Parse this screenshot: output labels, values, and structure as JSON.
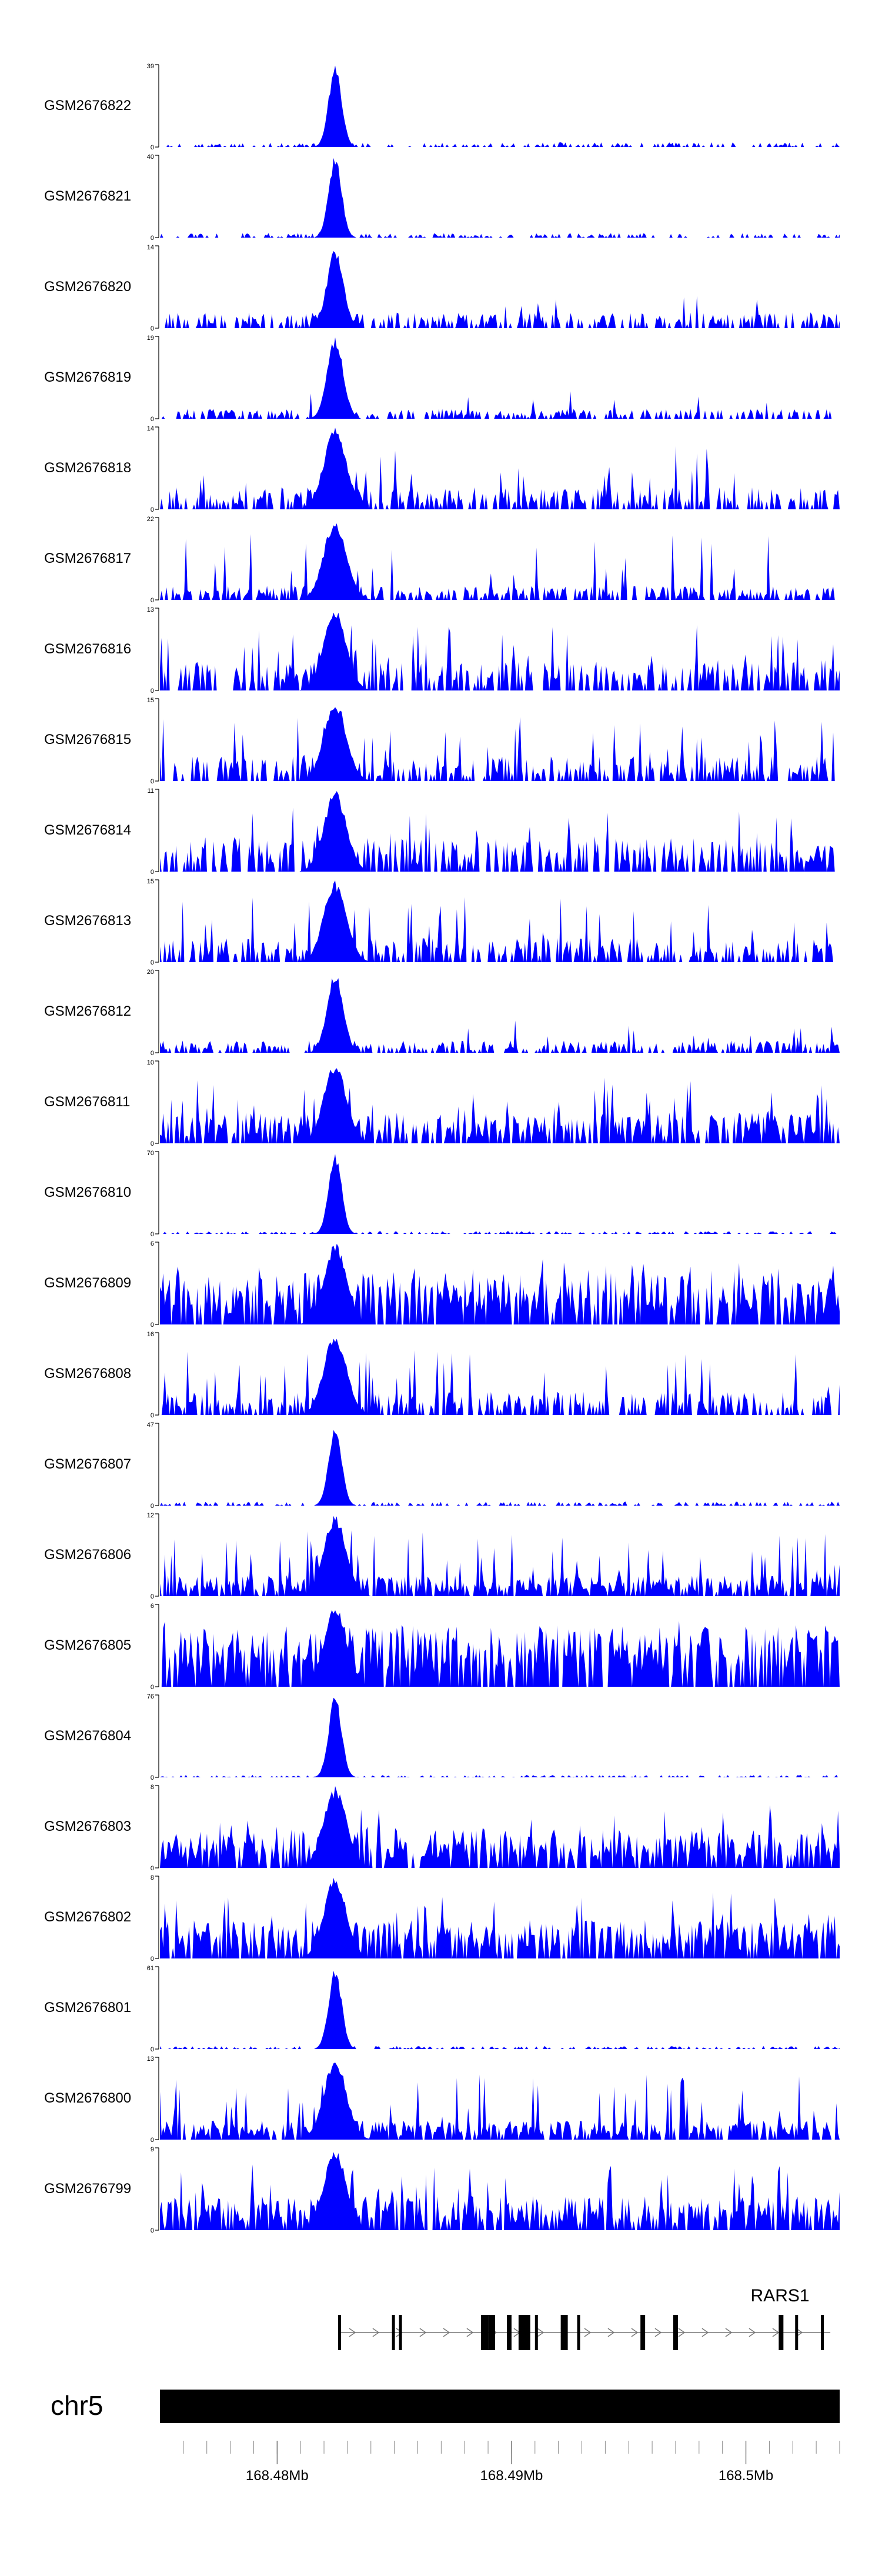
{
  "chart_data": {
    "type": "area",
    "title": "",
    "color": "#0000ff",
    "tracks": [
      {
        "name": "GSM2676822",
        "max": "39",
        "zero": "0",
        "peak": 39,
        "baseline": 1.5,
        "bg_density": "sparse"
      },
      {
        "name": "GSM2676821",
        "max": "40",
        "zero": "0",
        "peak": 40,
        "baseline": 1.5,
        "bg_density": "sparse"
      },
      {
        "name": "GSM2676820",
        "max": "14",
        "zero": "0",
        "peak": 14,
        "baseline": 1.8,
        "bg_density": "medium"
      },
      {
        "name": "GSM2676819",
        "max": "19",
        "zero": "0",
        "peak": 19,
        "baseline": 1.5,
        "bg_density": "medium"
      },
      {
        "name": "GSM2676818",
        "max": "14",
        "zero": "0",
        "peak": 14,
        "baseline": 2.5,
        "bg_density": "spiky"
      },
      {
        "name": "GSM2676817",
        "max": "22",
        "zero": "0",
        "peak": 22,
        "baseline": 2.5,
        "bg_density": "spiky"
      },
      {
        "name": "GSM2676816",
        "max": "13",
        "zero": "0",
        "peak": 13,
        "baseline": 3,
        "bg_density": "spiky"
      },
      {
        "name": "GSM2676815",
        "max": "15",
        "zero": "0",
        "peak": 15,
        "baseline": 3,
        "bg_density": "spiky"
      },
      {
        "name": "GSM2676814",
        "max": "11",
        "zero": "0",
        "peak": 11,
        "baseline": 3,
        "bg_density": "spiky"
      },
      {
        "name": "GSM2676813",
        "max": "15",
        "zero": "0",
        "peak": 15,
        "baseline": 3,
        "bg_density": "spiky"
      },
      {
        "name": "GSM2676812",
        "max": "20",
        "zero": "0",
        "peak": 20,
        "baseline": 2,
        "bg_density": "medium"
      },
      {
        "name": "GSM2676811",
        "max": "10",
        "zero": "0",
        "peak": 10,
        "baseline": 2.5,
        "bg_density": "dense"
      },
      {
        "name": "GSM2676810",
        "max": "70",
        "zero": "0",
        "peak": 70,
        "baseline": 1.5,
        "bg_density": "sparse"
      },
      {
        "name": "GSM2676809",
        "max": "6",
        "zero": "0",
        "peak": 6,
        "baseline": 2.5,
        "bg_density": "dense"
      },
      {
        "name": "GSM2676808",
        "max": "16",
        "zero": "0",
        "peak": 16,
        "baseline": 3,
        "bg_density": "spiky"
      },
      {
        "name": "GSM2676807",
        "max": "47",
        "zero": "0",
        "peak": 47,
        "baseline": 1.5,
        "bg_density": "sparse"
      },
      {
        "name": "GSM2676806",
        "max": "12",
        "zero": "0",
        "peak": 12,
        "baseline": 2,
        "bg_density": "dense"
      },
      {
        "name": "GSM2676805",
        "max": "6",
        "zero": "0",
        "peak": 6,
        "baseline": 3,
        "bg_density": "dense"
      },
      {
        "name": "GSM2676804",
        "max": "76",
        "zero": "0",
        "peak": 76,
        "baseline": 1.5,
        "bg_density": "sparse"
      },
      {
        "name": "GSM2676803",
        "max": "8",
        "zero": "0",
        "peak": 8,
        "baseline": 2.5,
        "bg_density": "dense"
      },
      {
        "name": "GSM2676802",
        "max": "8",
        "zero": "0",
        "peak": 8,
        "baseline": 2.5,
        "bg_density": "dense"
      },
      {
        "name": "GSM2676801",
        "max": "61",
        "zero": "0",
        "peak": 61,
        "baseline": 1.5,
        "bg_density": "sparse"
      },
      {
        "name": "GSM2676800",
        "max": "13",
        "zero": "0",
        "peak": 13,
        "baseline": 2,
        "bg_density": "dense"
      },
      {
        "name": "GSM2676799",
        "max": "9",
        "zero": "0",
        "peak": 9,
        "baseline": 2.5,
        "bg_density": "dense"
      }
    ],
    "genomic_range_mb": [
      168.475,
      168.504
    ],
    "peak_position_mb": 168.4825,
    "gene": {
      "name": "RARS1",
      "start_mb": 168.4826,
      "end_mb": 168.5032,
      "strand": "+",
      "exons_mb": [
        [
          168.4826,
          168.4827
        ],
        [
          168.4849,
          168.485
        ],
        [
          168.4852,
          168.4853
        ],
        [
          168.4887,
          168.489
        ],
        [
          168.489,
          168.4893
        ],
        [
          168.4898,
          168.49
        ],
        [
          168.4903,
          168.4908
        ],
        [
          168.491,
          168.4911
        ],
        [
          168.4921,
          168.4924
        ],
        [
          168.4928,
          168.4929
        ],
        [
          168.4955,
          168.4957
        ],
        [
          168.4969,
          168.4971
        ],
        [
          168.5014,
          168.5016
        ],
        [
          168.5021,
          168.5022
        ],
        [
          168.5032,
          168.5033
        ]
      ]
    },
    "chromosome": "chr5",
    "axis_ticks_mb": [
      168.476,
      168.477,
      168.478,
      168.479,
      168.48,
      168.481,
      168.482,
      168.483,
      168.484,
      168.485,
      168.486,
      168.487,
      168.488,
      168.489,
      168.49,
      168.491,
      168.492,
      168.493,
      168.494,
      168.495,
      168.496,
      168.497,
      168.498,
      168.499,
      168.5,
      168.501,
      168.502,
      168.503,
      168.504
    ],
    "axis_labels": [
      {
        "mb": 168.48,
        "text": "168.48Mb"
      },
      {
        "mb": 168.49,
        "text": "168.49Mb"
      },
      {
        "mb": 168.5,
        "text": "168.5Mb"
      }
    ],
    "xlabel": "",
    "ylabel": ""
  }
}
